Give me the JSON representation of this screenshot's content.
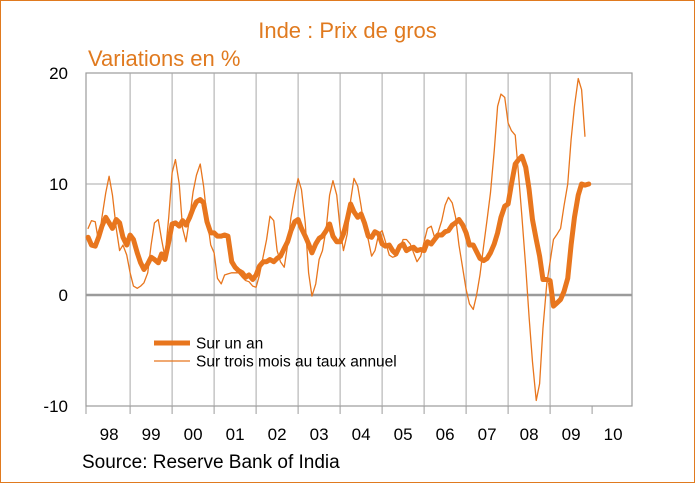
{
  "chart_data": {
    "type": "line",
    "title": "Inde : Prix de gros",
    "subtitle": "Variations en %",
    "source": "Source: Reserve Bank of India",
    "ylim": [
      -10,
      20
    ],
    "yticks": [
      -10,
      0,
      10,
      20
    ],
    "xlim": [
      1997.95,
      2010.95
    ],
    "xtick_labels": [
      "98",
      "99",
      "00",
      "01",
      "02",
      "03",
      "04",
      "05",
      "06",
      "07",
      "08",
      "09",
      "10"
    ],
    "grid": true,
    "legend_position": "bottom-left",
    "series": [
      {
        "name": "Sur un an",
        "color": "#e8761e",
        "points": [
          [
            1998.0,
            5.2
          ],
          [
            1998.08,
            4.5
          ],
          [
            1998.17,
            4.4
          ],
          [
            1998.25,
            5.2
          ],
          [
            1998.33,
            6.2
          ],
          [
            1998.42,
            7.0
          ],
          [
            1998.5,
            6.5
          ],
          [
            1998.58,
            6.0
          ],
          [
            1998.67,
            6.8
          ],
          [
            1998.75,
            6.5
          ],
          [
            1998.83,
            5.2
          ],
          [
            1998.92,
            4.5
          ],
          [
            1999.0,
            5.4
          ],
          [
            1999.08,
            5.0
          ],
          [
            1999.17,
            3.8
          ],
          [
            1999.25,
            2.9
          ],
          [
            1999.33,
            2.3
          ],
          [
            1999.42,
            2.8
          ],
          [
            1999.5,
            3.4
          ],
          [
            1999.58,
            3.2
          ],
          [
            1999.67,
            2.9
          ],
          [
            1999.75,
            3.7
          ],
          [
            1999.83,
            3.2
          ],
          [
            1999.92,
            4.8
          ],
          [
            2000.0,
            6.4
          ],
          [
            2000.08,
            6.5
          ],
          [
            2000.17,
            6.2
          ],
          [
            2000.25,
            6.7
          ],
          [
            2000.33,
            6.3
          ],
          [
            2000.42,
            7.0
          ],
          [
            2000.5,
            7.8
          ],
          [
            2000.58,
            8.4
          ],
          [
            2000.67,
            8.6
          ],
          [
            2000.75,
            8.3
          ],
          [
            2000.83,
            6.6
          ],
          [
            2000.92,
            5.6
          ],
          [
            2001.0,
            5.6
          ],
          [
            2001.08,
            5.3
          ],
          [
            2001.17,
            5.3
          ],
          [
            2001.25,
            5.4
          ],
          [
            2001.33,
            5.3
          ],
          [
            2001.42,
            3.0
          ],
          [
            2001.5,
            2.5
          ],
          [
            2001.58,
            2.2
          ],
          [
            2001.67,
            2.0
          ],
          [
            2001.75,
            1.6
          ],
          [
            2001.83,
            1.8
          ],
          [
            2001.92,
            1.4
          ],
          [
            2002.0,
            1.8
          ],
          [
            2002.08,
            2.6
          ],
          [
            2002.17,
            3.0
          ],
          [
            2002.25,
            3.0
          ],
          [
            2002.33,
            3.2
          ],
          [
            2002.42,
            3.0
          ],
          [
            2002.5,
            3.3
          ],
          [
            2002.58,
            3.5
          ],
          [
            2002.67,
            4.2
          ],
          [
            2002.75,
            4.8
          ],
          [
            2002.83,
            5.8
          ],
          [
            2002.92,
            6.6
          ],
          [
            2003.0,
            6.8
          ],
          [
            2003.08,
            6.0
          ],
          [
            2003.17,
            5.3
          ],
          [
            2003.25,
            4.6
          ],
          [
            2003.33,
            3.8
          ],
          [
            2003.42,
            4.6
          ],
          [
            2003.5,
            5.1
          ],
          [
            2003.58,
            5.3
          ],
          [
            2003.67,
            5.8
          ],
          [
            2003.75,
            6.4
          ],
          [
            2003.83,
            5.3
          ],
          [
            2003.92,
            4.8
          ],
          [
            2004.0,
            4.8
          ],
          [
            2004.08,
            5.5
          ],
          [
            2004.17,
            6.8
          ],
          [
            2004.25,
            8.2
          ],
          [
            2004.33,
            7.5
          ],
          [
            2004.42,
            7.0
          ],
          [
            2004.5,
            7.3
          ],
          [
            2004.58,
            6.5
          ],
          [
            2004.67,
            5.3
          ],
          [
            2004.75,
            5.2
          ],
          [
            2004.83,
            5.7
          ],
          [
            2004.92,
            5.5
          ],
          [
            2005.0,
            4.6
          ],
          [
            2005.08,
            4.4
          ],
          [
            2005.17,
            4.5
          ],
          [
            2005.25,
            4.0
          ],
          [
            2005.33,
            3.7
          ],
          [
            2005.42,
            4.4
          ],
          [
            2005.5,
            4.6
          ],
          [
            2005.58,
            4.0
          ],
          [
            2005.67,
            4.2
          ],
          [
            2005.75,
            4.3
          ],
          [
            2005.83,
            4.0
          ],
          [
            2005.92,
            4.1
          ],
          [
            2006.0,
            4.0
          ],
          [
            2006.08,
            4.8
          ],
          [
            2006.17,
            4.6
          ],
          [
            2006.25,
            5.0
          ],
          [
            2006.33,
            5.4
          ],
          [
            2006.42,
            5.4
          ],
          [
            2006.5,
            5.7
          ],
          [
            2006.58,
            5.8
          ],
          [
            2006.67,
            6.3
          ],
          [
            2006.75,
            6.5
          ],
          [
            2006.83,
            6.8
          ],
          [
            2006.92,
            6.3
          ],
          [
            2007.0,
            5.6
          ],
          [
            2007.08,
            4.5
          ],
          [
            2007.17,
            4.5
          ],
          [
            2007.25,
            3.9
          ],
          [
            2007.33,
            3.3
          ],
          [
            2007.42,
            3.1
          ],
          [
            2007.5,
            3.3
          ],
          [
            2007.58,
            3.8
          ],
          [
            2007.67,
            4.6
          ],
          [
            2007.75,
            5.6
          ],
          [
            2007.83,
            7.0
          ],
          [
            2007.92,
            8.0
          ],
          [
            2008.0,
            8.2
          ],
          [
            2008.08,
            10.0
          ],
          [
            2008.17,
            11.8
          ],
          [
            2008.25,
            12.2
          ],
          [
            2008.33,
            12.5
          ],
          [
            2008.42,
            11.5
          ],
          [
            2008.5,
            9.5
          ],
          [
            2008.58,
            6.8
          ],
          [
            2008.67,
            5.0
          ],
          [
            2008.75,
            3.5
          ],
          [
            2008.83,
            1.4
          ],
          [
            2008.92,
            1.4
          ],
          [
            2009.0,
            1.3
          ],
          [
            2009.08,
            -1.0
          ],
          [
            2009.17,
            -0.7
          ],
          [
            2009.25,
            -0.4
          ],
          [
            2009.33,
            0.3
          ],
          [
            2009.42,
            1.5
          ],
          [
            2009.5,
            4.5
          ],
          [
            2009.58,
            7.0
          ],
          [
            2009.67,
            9.0
          ],
          [
            2009.75,
            10.0
          ],
          [
            2009.83,
            9.9
          ],
          [
            2009.92,
            10.0
          ]
        ]
      },
      {
        "name": "Sur trois mois au taux annuel",
        "color": "#e8761e",
        "points": [
          [
            1998.0,
            6.0
          ],
          [
            1998.08,
            6.7
          ],
          [
            1998.17,
            6.6
          ],
          [
            1998.25,
            4.8
          ],
          [
            1998.33,
            7.0
          ],
          [
            1998.42,
            9.2
          ],
          [
            1998.5,
            10.7
          ],
          [
            1998.58,
            9.0
          ],
          [
            1998.67,
            6.0
          ],
          [
            1998.75,
            4.0
          ],
          [
            1998.83,
            4.5
          ],
          [
            1998.92,
            3.6
          ],
          [
            1999.0,
            2.0
          ],
          [
            1999.08,
            0.8
          ],
          [
            1999.17,
            0.6
          ],
          [
            1999.25,
            0.8
          ],
          [
            1999.33,
            1.1
          ],
          [
            1999.42,
            2.0
          ],
          [
            1999.5,
            4.5
          ],
          [
            1999.58,
            6.5
          ],
          [
            1999.67,
            6.8
          ],
          [
            1999.75,
            5.0
          ],
          [
            1999.83,
            3.4
          ],
          [
            1999.92,
            7.0
          ],
          [
            2000.0,
            11.0
          ],
          [
            2000.08,
            12.2
          ],
          [
            2000.17,
            10.0
          ],
          [
            2000.25,
            6.0
          ],
          [
            2000.33,
            4.8
          ],
          [
            2000.42,
            7.0
          ],
          [
            2000.5,
            9.3
          ],
          [
            2000.58,
            10.8
          ],
          [
            2000.67,
            11.8
          ],
          [
            2000.75,
            9.8
          ],
          [
            2000.83,
            7.0
          ],
          [
            2000.92,
            4.5
          ],
          [
            2001.0,
            3.8
          ],
          [
            2001.08,
            1.5
          ],
          [
            2001.17,
            1.0
          ],
          [
            2001.25,
            1.8
          ],
          [
            2001.33,
            1.9
          ],
          [
            2001.42,
            2.0
          ],
          [
            2001.5,
            2.0
          ],
          [
            2001.58,
            2.0
          ],
          [
            2001.67,
            1.6
          ],
          [
            2001.75,
            1.3
          ],
          [
            2001.83,
            1.2
          ],
          [
            2001.92,
            0.8
          ],
          [
            2002.0,
            0.7
          ],
          [
            2002.08,
            1.8
          ],
          [
            2002.17,
            3.5
          ],
          [
            2002.25,
            5.0
          ],
          [
            2002.33,
            7.1
          ],
          [
            2002.42,
            6.7
          ],
          [
            2002.5,
            4.0
          ],
          [
            2002.58,
            3.0
          ],
          [
            2002.67,
            2.5
          ],
          [
            2002.75,
            4.5
          ],
          [
            2002.83,
            7.0
          ],
          [
            2002.92,
            9.0
          ],
          [
            2003.0,
            10.5
          ],
          [
            2003.08,
            9.5
          ],
          [
            2003.17,
            6.5
          ],
          [
            2003.25,
            2.0
          ],
          [
            2003.33,
            -0.1
          ],
          [
            2003.42,
            1.0
          ],
          [
            2003.5,
            3.2
          ],
          [
            2003.58,
            4.0
          ],
          [
            2003.67,
            6.0
          ],
          [
            2003.75,
            9.0
          ],
          [
            2003.83,
            10.3
          ],
          [
            2003.92,
            9.0
          ],
          [
            2004.0,
            6.0
          ],
          [
            2004.08,
            4.0
          ],
          [
            2004.17,
            5.5
          ],
          [
            2004.25,
            8.5
          ],
          [
            2004.33,
            10.5
          ],
          [
            2004.42,
            9.8
          ],
          [
            2004.5,
            8.0
          ],
          [
            2004.58,
            6.0
          ],
          [
            2004.67,
            5.0
          ],
          [
            2004.75,
            3.5
          ],
          [
            2004.83,
            4.0
          ],
          [
            2004.92,
            5.5
          ],
          [
            2005.0,
            5.8
          ],
          [
            2005.08,
            4.8
          ],
          [
            2005.17,
            3.6
          ],
          [
            2005.25,
            3.4
          ],
          [
            2005.33,
            3.5
          ],
          [
            2005.42,
            4.2
          ],
          [
            2005.5,
            5.0
          ],
          [
            2005.58,
            5.0
          ],
          [
            2005.67,
            4.6
          ],
          [
            2005.75,
            3.8
          ],
          [
            2005.83,
            3.0
          ],
          [
            2005.92,
            3.5
          ],
          [
            2006.0,
            4.8
          ],
          [
            2006.08,
            6.0
          ],
          [
            2006.17,
            6.2
          ],
          [
            2006.25,
            5.2
          ],
          [
            2006.33,
            5.6
          ],
          [
            2006.42,
            6.7
          ],
          [
            2006.5,
            8.1
          ],
          [
            2006.58,
            8.8
          ],
          [
            2006.67,
            8.3
          ],
          [
            2006.75,
            7.0
          ],
          [
            2006.83,
            4.5
          ],
          [
            2006.92,
            2.4
          ],
          [
            2007.0,
            0.5
          ],
          [
            2007.08,
            -0.8
          ],
          [
            2007.17,
            -1.3
          ],
          [
            2007.25,
            0.0
          ],
          [
            2007.33,
            1.8
          ],
          [
            2007.42,
            4.5
          ],
          [
            2007.5,
            6.8
          ],
          [
            2007.58,
            9.2
          ],
          [
            2007.67,
            13.0
          ],
          [
            2007.75,
            17.0
          ],
          [
            2007.83,
            18.1
          ],
          [
            2007.92,
            17.8
          ],
          [
            2008.0,
            15.5
          ],
          [
            2008.08,
            14.8
          ],
          [
            2008.17,
            14.4
          ],
          [
            2008.25,
            10.8
          ],
          [
            2008.33,
            7.0
          ],
          [
            2008.42,
            2.5
          ],
          [
            2008.5,
            -2.0
          ],
          [
            2008.58,
            -6.0
          ],
          [
            2008.67,
            -9.5
          ],
          [
            2008.75,
            -8.0
          ],
          [
            2008.83,
            -3.0
          ],
          [
            2008.92,
            1.0
          ],
          [
            2009.0,
            3.0
          ],
          [
            2009.08,
            5.0
          ],
          [
            2009.17,
            5.5
          ],
          [
            2009.25,
            6.0
          ],
          [
            2009.33,
            8.0
          ],
          [
            2009.42,
            10.0
          ],
          [
            2009.5,
            14.0
          ],
          [
            2009.58,
            17.0
          ],
          [
            2009.67,
            19.5
          ],
          [
            2009.75,
            18.5
          ],
          [
            2009.83,
            14.3
          ]
        ]
      }
    ]
  }
}
